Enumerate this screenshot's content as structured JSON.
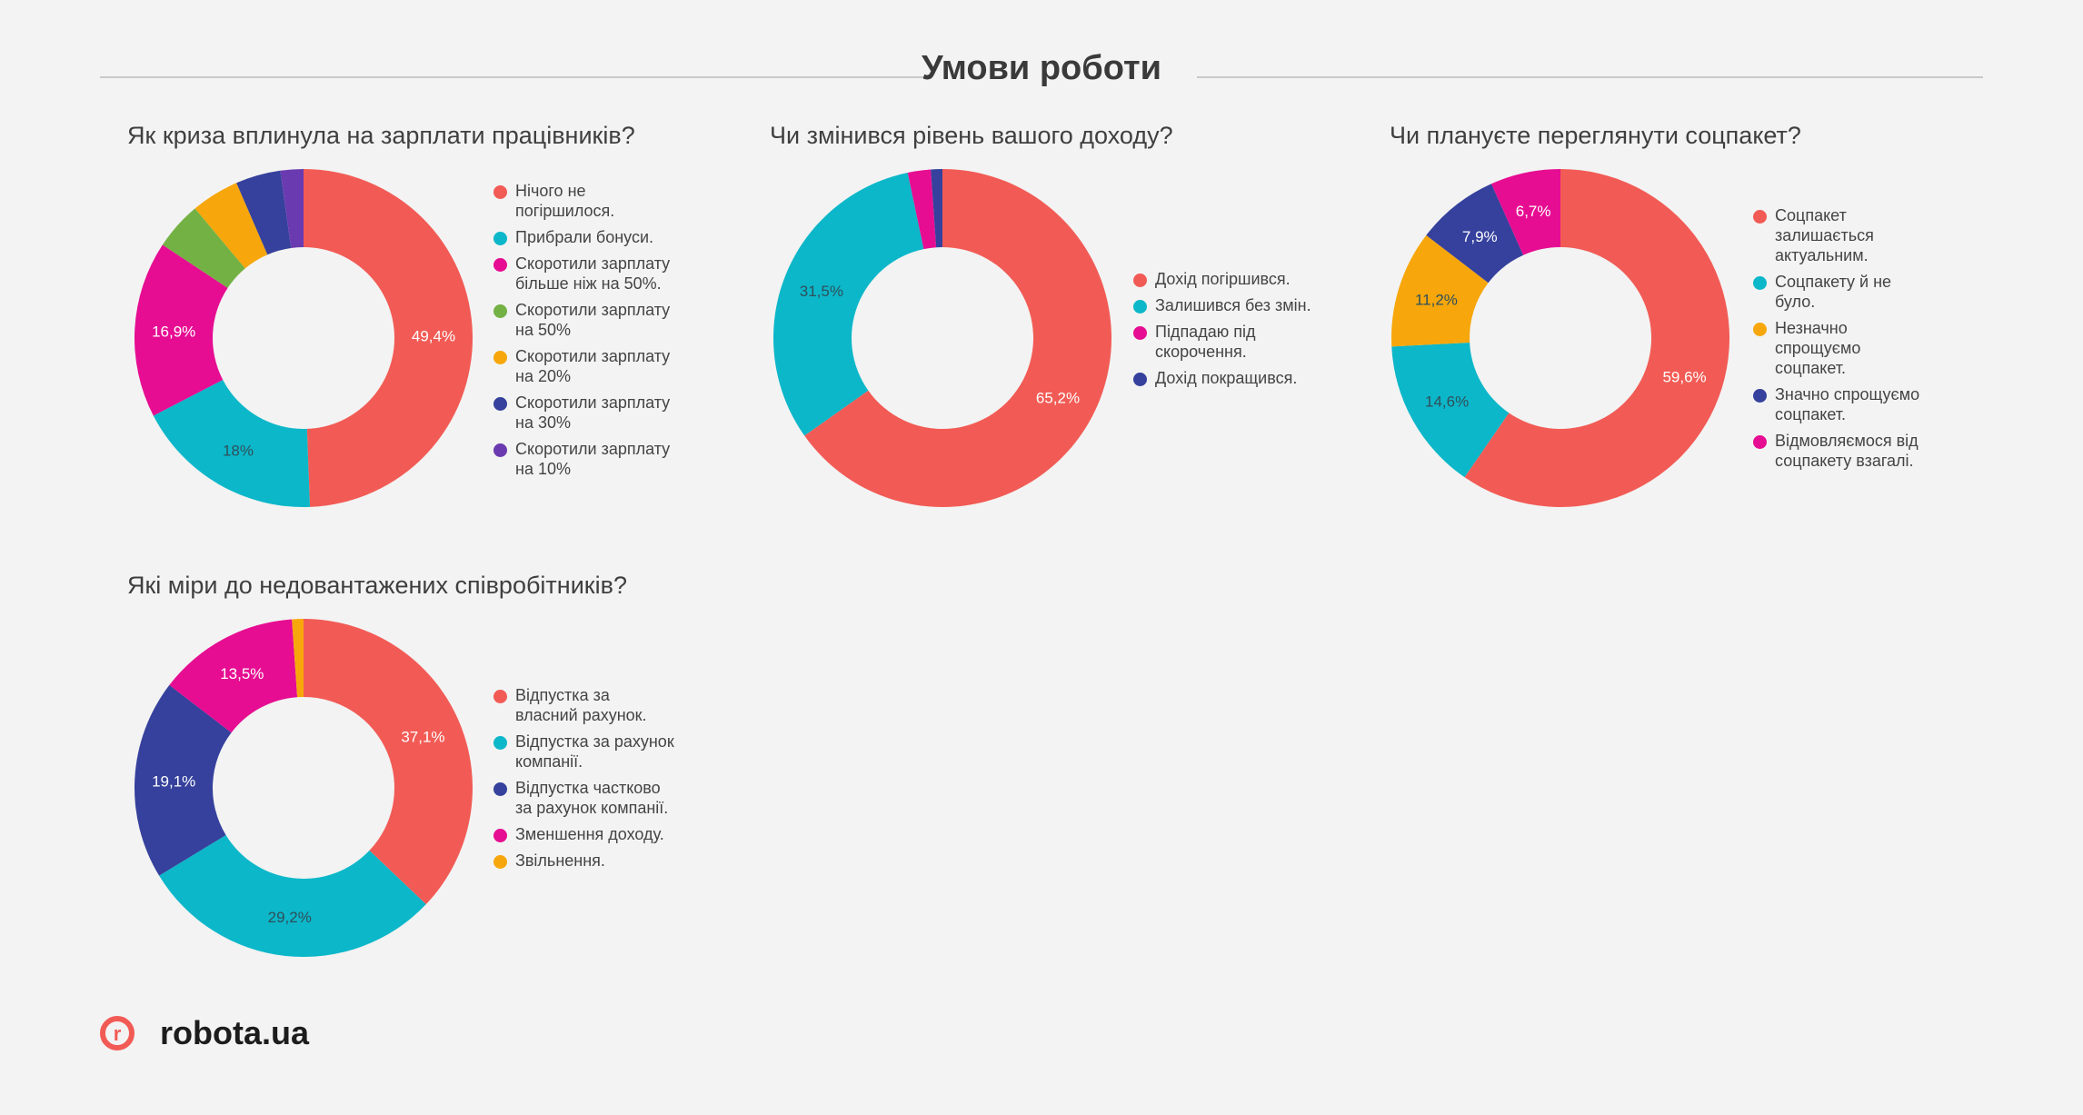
{
  "page": {
    "title": "Умови роботи"
  },
  "brand": {
    "logo_letter": "r",
    "logo_text": "robota.ua"
  },
  "colors": {
    "red": "#f25b55",
    "teal": "#0cb7c9",
    "magenta": "#e60d92",
    "green": "#74b144",
    "orange": "#f7a70b",
    "navy": "#35419c",
    "purple": "#6a3bb0"
  },
  "chart_data": [
    {
      "type": "pie",
      "title": "Як криза вплинула на зарплати працівників?",
      "categories": [
        "Нічого не погіршилося.",
        "Прибрали бонуси.",
        "Скоротили зарплату більше ніж на 50%.",
        "Скоротили зарплату на 50%",
        "Скоротили зарплату на 20%",
        "Скоротили зарплату на 30%",
        "Скоротили зарплату на 10%"
      ],
      "values": [
        49.4,
        18,
        16.9,
        4.6,
        4.6,
        4.3,
        2.2
      ],
      "value_labels": [
        "49,4%",
        "18%",
        "16,9%",
        "",
        "",
        "",
        ""
      ],
      "colors": [
        "#f25b55",
        "#0cb7c9",
        "#e60d92",
        "#74b144",
        "#f7a70b",
        "#35419c",
        "#6a3bb0"
      ]
    },
    {
      "type": "pie",
      "title": "Чи змінився рівень вашого доходу?",
      "categories": [
        "Дохід погіршився.",
        "Залишився без змін.",
        "Підпадаю під скорочення.",
        "Дохід покращився."
      ],
      "values": [
        65.2,
        31.5,
        2.2,
        1.1
      ],
      "value_labels": [
        "65,2%",
        "31,5%",
        "",
        ""
      ],
      "colors": [
        "#f25b55",
        "#0cb7c9",
        "#e60d92",
        "#35419c"
      ]
    },
    {
      "type": "pie",
      "title": "Чи плануєте переглянути соцпакет?",
      "categories": [
        "Соцпакет залишається актуальним.",
        "Соцпакету й не було.",
        "Незначно спрощуємо соцпакет.",
        "Значно спрощуємо соцпакет.",
        "Відмовляємося від соцпакету взагалі."
      ],
      "values": [
        59.6,
        14.6,
        11.2,
        7.9,
        6.7
      ],
      "value_labels": [
        "59,6%",
        "14,6%",
        "11,2%",
        "7,9%",
        "6,7%"
      ],
      "colors": [
        "#f25b55",
        "#0cb7c9",
        "#f7a70b",
        "#35419c",
        "#e60d92"
      ]
    },
    {
      "type": "pie",
      "title": "Які міри до недовантажених співробітників?",
      "categories": [
        "Відпустка за власний рахунок.",
        "Відпустка за рахунок компанії.",
        "Відпустка частково за рахунок компанії.",
        "Зменшення доходу.",
        "Звільнення."
      ],
      "values": [
        37.1,
        29.2,
        19.1,
        13.5,
        1.1
      ],
      "value_labels": [
        "37,1%",
        "29,2%",
        "19,1%",
        "13,5%",
        ""
      ],
      "colors": [
        "#f25b55",
        "#0cb7c9",
        "#35419c",
        "#e60d92",
        "#f7a70b"
      ]
    }
  ]
}
